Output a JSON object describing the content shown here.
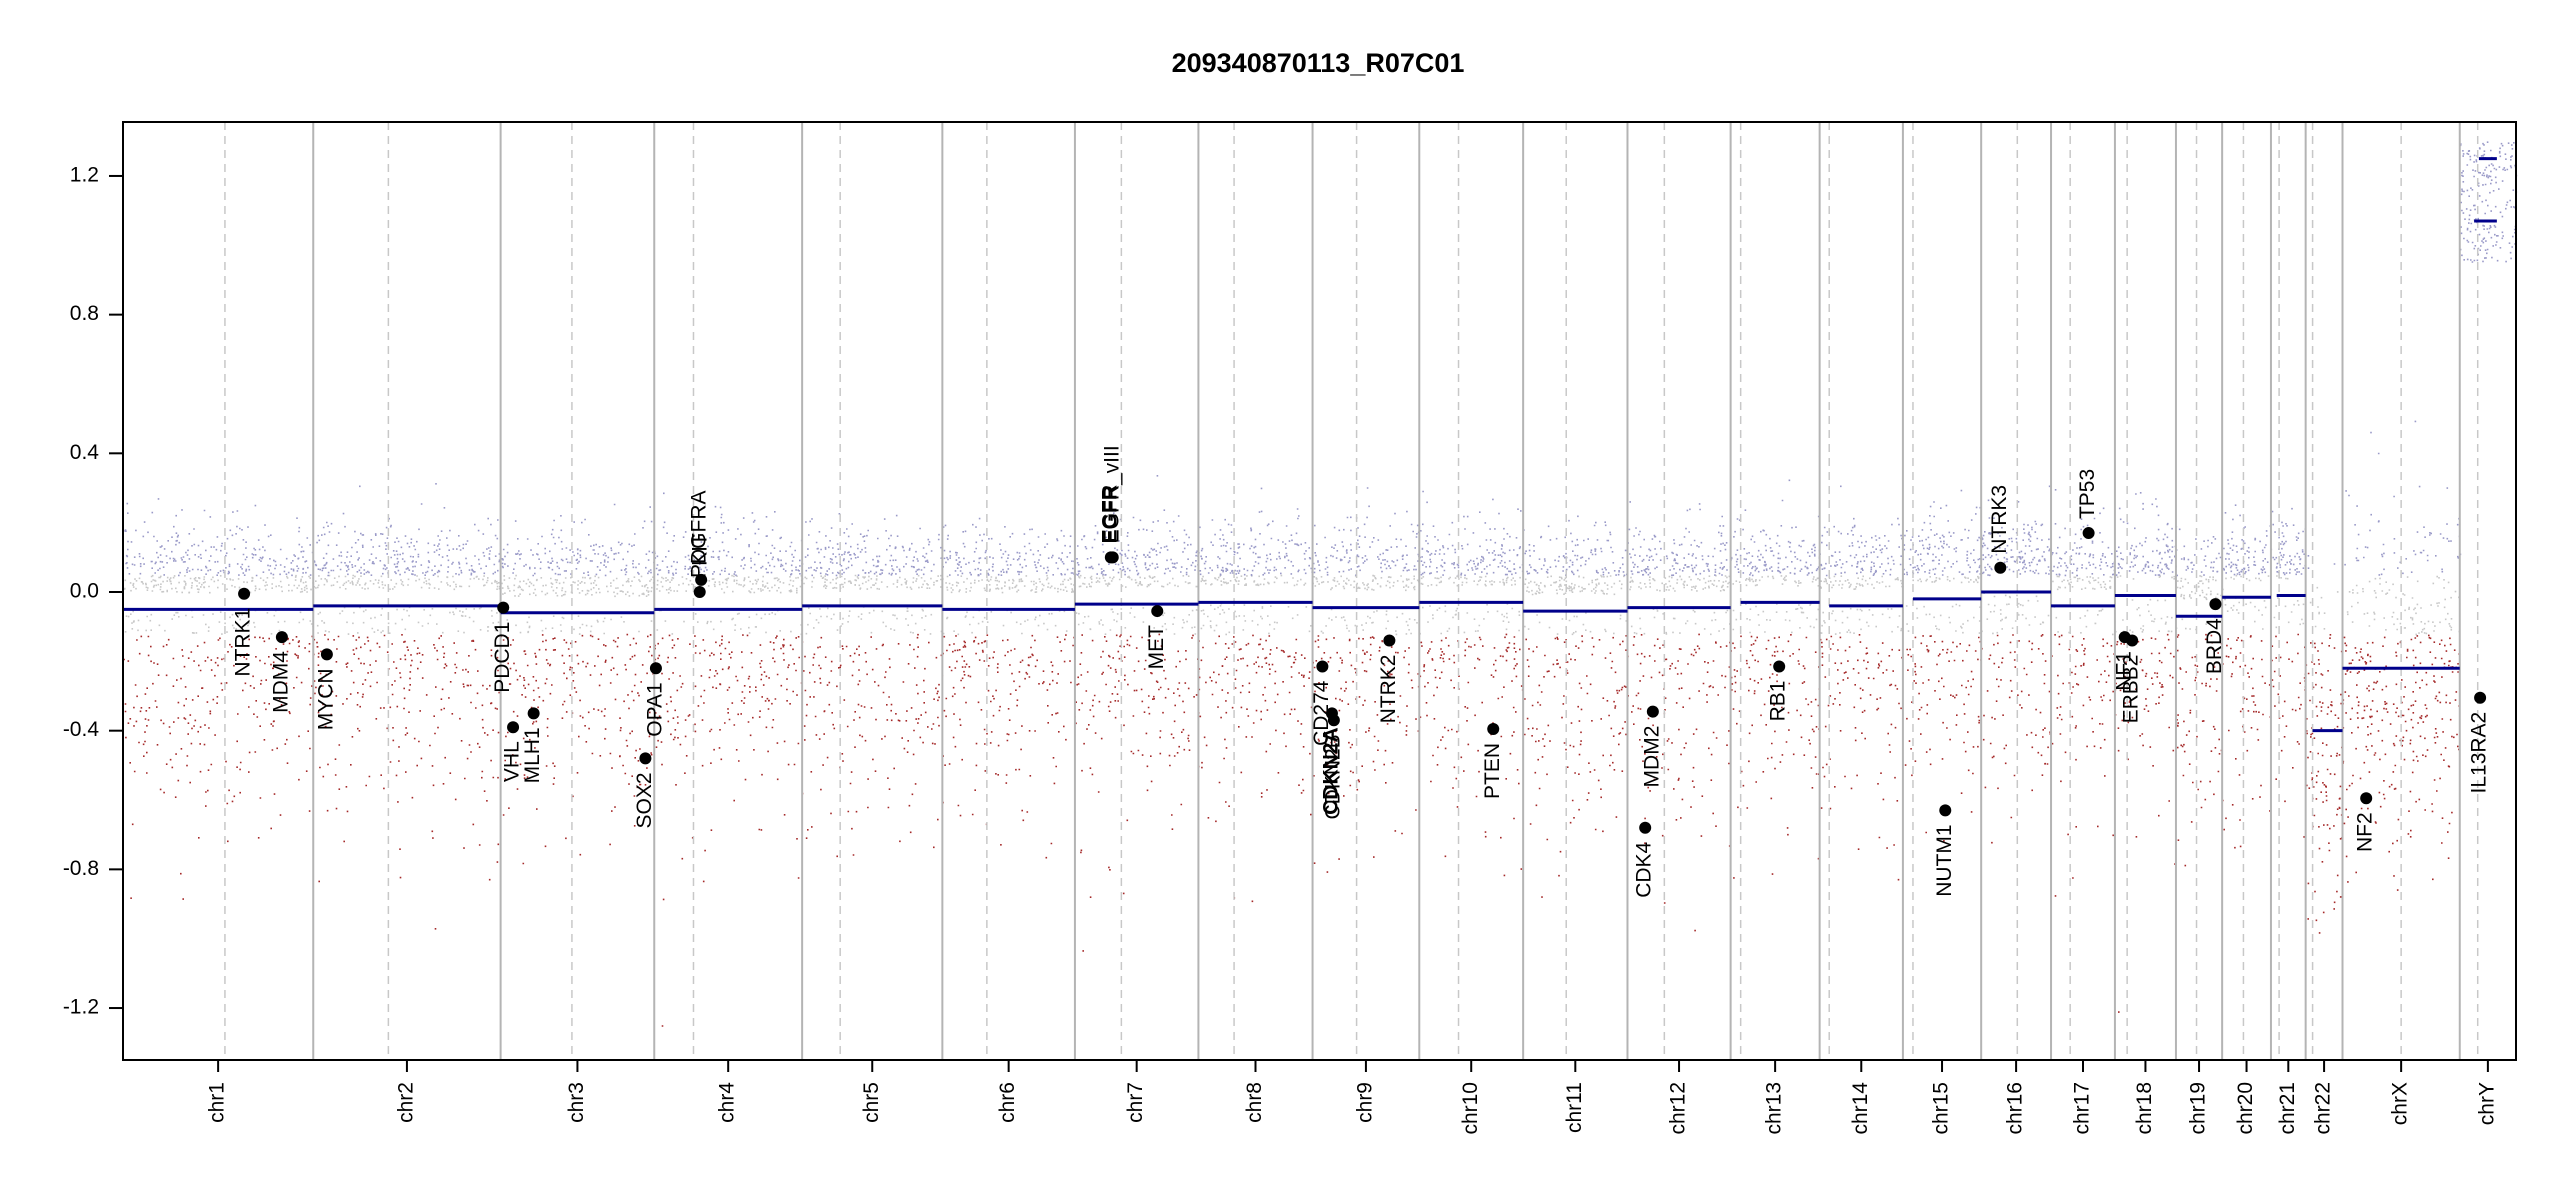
{
  "chart_data": {
    "type": "scatter",
    "title": "209340870113_R07C01",
    "xlabel": "",
    "ylabel": "",
    "ylim": [
      -1.35,
      1.35
    ],
    "yticks": [
      {
        "value": 1.2,
        "label": "1.2"
      },
      {
        "value": 0.8,
        "label": "0.8"
      },
      {
        "value": 0.4,
        "label": "0.4"
      },
      {
        "value": 0.0,
        "label": "0.0"
      },
      {
        "value": -0.4,
        "label": "-0.4"
      },
      {
        "value": -0.8,
        "label": "-0.8"
      },
      {
        "value": -1.2,
        "label": "-1.2"
      }
    ],
    "colors": {
      "segment": "#00008b",
      "gain_points": "#9a9ac8",
      "neutral_points": "#c8c8c8",
      "loss_points": "#a52a2a",
      "boundary": "#b4b4b4",
      "centromere": "#c8c8c8",
      "gene_point": "#000000"
    },
    "chromosomes": [
      {
        "name": "chr1",
        "start": 0.0,
        "end": 0.0795,
        "centromere": 0.0426,
        "segments": [
          {
            "x0": 0.0,
            "x1": 0.0795,
            "y": -0.05
          }
        ]
      },
      {
        "name": "chr2",
        "start": 0.0795,
        "end": 0.1578,
        "centromere": 0.1109,
        "segments": [
          {
            "x0": 0.0795,
            "x1": 0.1578,
            "y": -0.04
          }
        ]
      },
      {
        "name": "chr3",
        "start": 0.1578,
        "end": 0.222,
        "centromere": 0.1876,
        "segments": [
          {
            "x0": 0.1578,
            "x1": 0.222,
            "y": -0.06
          }
        ]
      },
      {
        "name": "chr4",
        "start": 0.222,
        "end": 0.2838,
        "centromere": 0.2384,
        "segments": [
          {
            "x0": 0.222,
            "x1": 0.2838,
            "y": -0.05
          }
        ]
      },
      {
        "name": "chr5",
        "start": 0.2838,
        "end": 0.3424,
        "centromere": 0.2997,
        "segments": [
          {
            "x0": 0.2838,
            "x1": 0.3424,
            "y": -0.04
          }
        ]
      },
      {
        "name": "chr6",
        "start": 0.3424,
        "end": 0.3978,
        "centromere": 0.361,
        "segments": [
          {
            "x0": 0.3424,
            "x1": 0.3978,
            "y": -0.05
          }
        ]
      },
      {
        "name": "chr7",
        "start": 0.3978,
        "end": 0.4494,
        "centromere": 0.4172,
        "segments": [
          {
            "x0": 0.3978,
            "x1": 0.4494,
            "y": -0.035
          }
        ]
      },
      {
        "name": "chr8",
        "start": 0.4494,
        "end": 0.4971,
        "centromere": 0.4643,
        "segments": [
          {
            "x0": 0.4494,
            "x1": 0.4971,
            "y": -0.03
          }
        ]
      },
      {
        "name": "chr9",
        "start": 0.4971,
        "end": 0.5417,
        "centromere": 0.5155,
        "segments": [
          {
            "x0": 0.4971,
            "x1": 0.5417,
            "y": -0.045
          }
        ]
      },
      {
        "name": "chr10",
        "start": 0.5417,
        "end": 0.5851,
        "centromere": 0.5581,
        "segments": [
          {
            "x0": 0.5417,
            "x1": 0.5851,
            "y": -0.03
          }
        ]
      },
      {
        "name": "chr11",
        "start": 0.5851,
        "end": 0.6287,
        "centromere": 0.6031,
        "segments": [
          {
            "x0": 0.5851,
            "x1": 0.6287,
            "y": -0.055
          }
        ]
      },
      {
        "name": "chr12",
        "start": 0.6287,
        "end": 0.6718,
        "centromere": 0.6441,
        "segments": [
          {
            "x0": 0.6287,
            "x1": 0.6718,
            "y": -0.045
          }
        ]
      },
      {
        "name": "chr13",
        "start": 0.6718,
        "end": 0.709,
        "centromere": 0.676,
        "segments": [
          {
            "x0": 0.676,
            "x1": 0.709,
            "y": -0.03
          }
        ]
      },
      {
        "name": "chr14",
        "start": 0.709,
        "end": 0.7438,
        "centromere": 0.713,
        "segments": [
          {
            "x0": 0.713,
            "x1": 0.7438,
            "y": -0.04
          }
        ]
      },
      {
        "name": "chr15",
        "start": 0.7438,
        "end": 0.7765,
        "centromere": 0.748,
        "segments": [
          {
            "x0": 0.748,
            "x1": 0.7765,
            "y": -0.02
          }
        ]
      },
      {
        "name": "chr16",
        "start": 0.7765,
        "end": 0.8057,
        "centromere": 0.7916,
        "segments": [
          {
            "x0": 0.7765,
            "x1": 0.8057,
            "y": 0.0
          }
        ]
      },
      {
        "name": "chr17",
        "start": 0.8057,
        "end": 0.8324,
        "centromere": 0.8137,
        "segments": [
          {
            "x0": 0.8057,
            "x1": 0.8324,
            "y": -0.04
          }
        ]
      },
      {
        "name": "chr18",
        "start": 0.8324,
        "end": 0.8579,
        "centromere": 0.8375,
        "segments": [
          {
            "x0": 0.8324,
            "x1": 0.8579,
            "y": -0.01
          }
        ]
      },
      {
        "name": "chr19",
        "start": 0.8579,
        "end": 0.8772,
        "centromere": 0.8665,
        "segments": [
          {
            "x0": 0.8579,
            "x1": 0.8772,
            "y": -0.07
          }
        ]
      },
      {
        "name": "chr20",
        "start": 0.8772,
        "end": 0.8976,
        "centromere": 0.8861,
        "segments": [
          {
            "x0": 0.8772,
            "x1": 0.8976,
            "y": -0.015
          }
        ]
      },
      {
        "name": "chr21",
        "start": 0.8976,
        "end": 0.9121,
        "centromere": 0.901,
        "segments": [
          {
            "x0": 0.9,
            "x1": 0.9121,
            "y": -0.01
          }
        ]
      },
      {
        "name": "chr22",
        "start": 0.9121,
        "end": 0.9275,
        "centromere": 0.915,
        "segments": [
          {
            "x0": 0.915,
            "x1": 0.9275,
            "y": -0.4
          }
        ]
      },
      {
        "name": "chrX",
        "start": 0.9275,
        "end": 0.9765,
        "centromere": 0.952,
        "segments": [
          {
            "x0": 0.9275,
            "x1": 0.9765,
            "y": -0.22
          }
        ]
      },
      {
        "name": "chrY",
        "start": 0.9765,
        "end": 1.0,
        "centromere": 0.984,
        "segments": [
          {
            "x0": 0.9845,
            "x1": 0.992,
            "y": 1.25
          },
          {
            "x0": 0.9825,
            "x1": 0.992,
            "y": 1.07
          }
        ]
      }
    ],
    "genes": [
      {
        "name": "NTRK1",
        "x": 0.0506,
        "y": -0.005,
        "bold": false
      },
      {
        "name": "MDM4",
        "x": 0.0664,
        "y": -0.13,
        "bold": false
      },
      {
        "name": "MYCN",
        "x": 0.0852,
        "y": -0.18,
        "bold": false
      },
      {
        "name": "PDCD1",
        "x": 0.1589,
        "y": -0.045,
        "bold": false
      },
      {
        "name": "VHL",
        "x": 0.163,
        "y": -0.39,
        "bold": false
      },
      {
        "name": "MLH1",
        "x": 0.1716,
        "y": -0.35,
        "bold": false
      },
      {
        "name": "SOX2",
        "x": 0.2183,
        "y": -0.48,
        "bold": false
      },
      {
        "name": "OPA1",
        "x": 0.2227,
        "y": -0.22,
        "bold": false
      },
      {
        "name": "PDGFRA",
        "x": 0.241,
        "y": 0.0,
        "bold": false
      },
      {
        "name": "KIT",
        "x": 0.2416,
        "y": 0.035,
        "bold": false
      },
      {
        "name": "EGFR",
        "x": 0.4128,
        "y": 0.1,
        "bold": true
      },
      {
        "name": "EGFR_vIII",
        "x": 0.4136,
        "y": 0.1,
        "bold": false
      },
      {
        "name": "MET",
        "x": 0.4322,
        "y": -0.055,
        "bold": false
      },
      {
        "name": "CD274",
        "x": 0.5012,
        "y": -0.215,
        "bold": false
      },
      {
        "name": "CDKN2A",
        "x": 0.5052,
        "y": -0.35,
        "bold": true
      },
      {
        "name": "CDKN2B",
        "x": 0.506,
        "y": -0.37,
        "bold": false
      },
      {
        "name": "NTRK2",
        "x": 0.5292,
        "y": -0.14,
        "bold": false
      },
      {
        "name": "PTEN",
        "x": 0.5726,
        "y": -0.395,
        "bold": false
      },
      {
        "name": "CDK4",
        "x": 0.6361,
        "y": -0.68,
        "bold": false
      },
      {
        "name": "MDM2",
        "x": 0.6393,
        "y": -0.345,
        "bold": false
      },
      {
        "name": "RB1",
        "x": 0.6921,
        "y": -0.215,
        "bold": false
      },
      {
        "name": "NUTM1",
        "x": 0.7615,
        "y": -0.63,
        "bold": false
      },
      {
        "name": "NTRK3",
        "x": 0.7845,
        "y": 0.07,
        "bold": false
      },
      {
        "name": "TP53",
        "x": 0.8214,
        "y": 0.17,
        "bold": false
      },
      {
        "name": "NF1",
        "x": 0.8365,
        "y": -0.13,
        "bold": false
      },
      {
        "name": "ERBB2",
        "x": 0.8396,
        "y": -0.14,
        "bold": false
      },
      {
        "name": "BRD4",
        "x": 0.8744,
        "y": -0.035,
        "bold": false
      },
      {
        "name": "NF2",
        "x": 0.9374,
        "y": -0.595,
        "bold": false
      },
      {
        "name": "IL13RA2",
        "x": 0.985,
        "y": -0.305,
        "bold": false
      }
    ]
  }
}
